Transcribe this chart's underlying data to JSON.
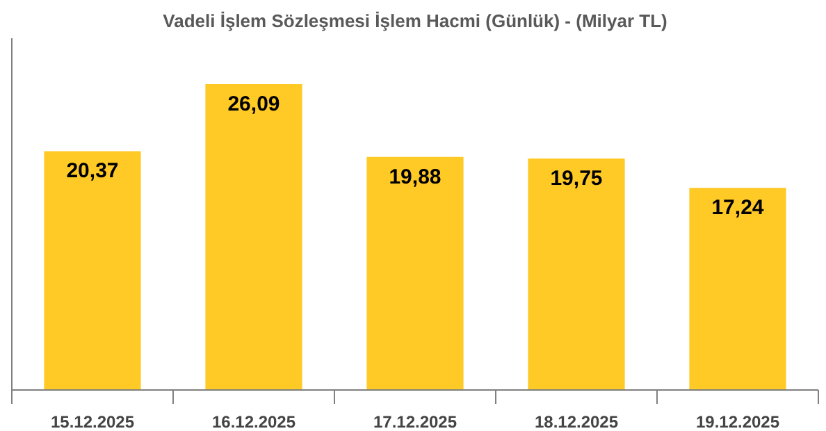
{
  "chart_data": {
    "type": "bar",
    "title": "Vadeli İşlem Sözleşmesi İşlem Hacmi (Günlük) - (Milyar TL)",
    "categories": [
      "15.12.2025",
      "16.12.2025",
      "17.12.2025",
      "18.12.2025",
      "19.12.2025"
    ],
    "values": [
      20.37,
      26.09,
      19.88,
      19.75,
      17.24
    ],
    "value_labels": [
      "20,37",
      "26,09",
      "19,88",
      "19,75",
      "17,24"
    ],
    "color": "#ffc926",
    "ylim": [
      0,
      30
    ],
    "tick_labels": "x",
    "grid": false
  }
}
